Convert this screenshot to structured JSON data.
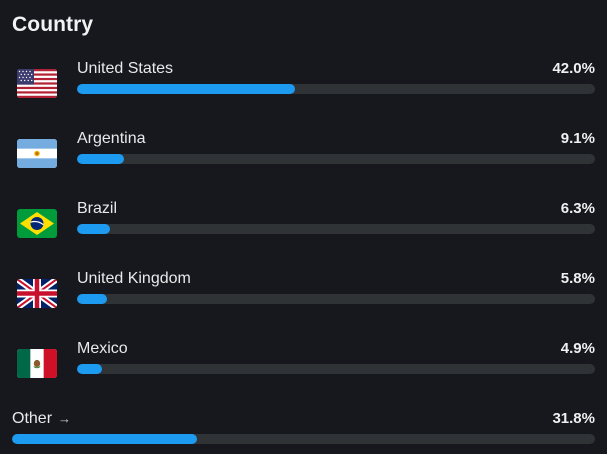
{
  "title": "Country",
  "accent_color": "#1d9bf0",
  "track_color": "#2f3336",
  "countries": [
    {
      "name": "United States",
      "percent_label": "42.0%",
      "fraction": 0.42,
      "flag": "us-flag-icon"
    },
    {
      "name": "Argentina",
      "percent_label": "9.1%",
      "fraction": 0.091,
      "flag": "argentina-flag-icon"
    },
    {
      "name": "Brazil",
      "percent_label": "6.3%",
      "fraction": 0.063,
      "flag": "brazil-flag-icon"
    },
    {
      "name": "United Kingdom",
      "percent_label": "5.8%",
      "fraction": 0.058,
      "flag": "uk-flag-icon"
    },
    {
      "name": "Mexico",
      "percent_label": "4.9%",
      "fraction": 0.049,
      "flag": "mexico-flag-icon"
    }
  ],
  "other": {
    "label": "Other",
    "arrow": "→",
    "percent_label": "31.8%",
    "fraction": 0.318
  }
}
